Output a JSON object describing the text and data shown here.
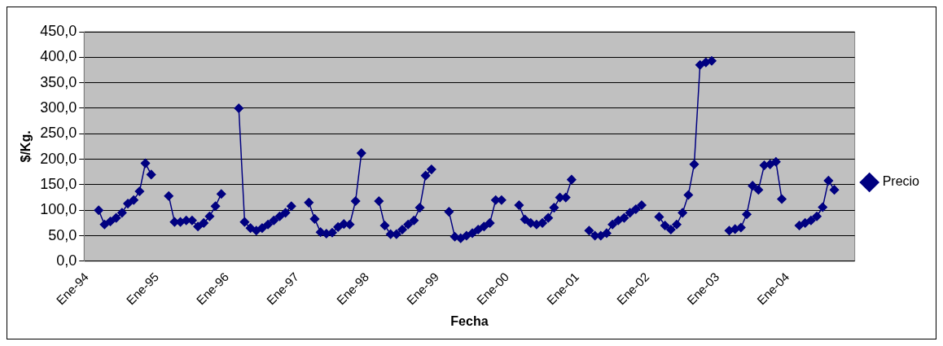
{
  "chart_data": {
    "type": "line",
    "xlabel": "Fecha",
    "ylabel": "$/Kg.",
    "categories": [
      "Ene-94",
      null,
      null,
      null,
      null,
      null,
      null,
      null,
      null,
      null,
      null,
      null,
      "Ene-95",
      null,
      null,
      null,
      null,
      null,
      null,
      null,
      null,
      null,
      null,
      null,
      "Ene-96",
      null,
      null,
      null,
      null,
      null,
      null,
      null,
      null,
      null,
      null,
      null,
      "Ene-97",
      null,
      null,
      null,
      null,
      null,
      null,
      null,
      null,
      null,
      null,
      null,
      "Ene-98",
      null,
      null,
      null,
      null,
      null,
      null,
      null,
      null,
      null,
      null,
      null,
      "Ene-99",
      null,
      null,
      null,
      null,
      null,
      null,
      null,
      null,
      null,
      null,
      null,
      "Ene-00",
      null,
      null,
      null,
      null,
      null,
      null,
      null,
      null,
      null,
      null,
      null,
      "Ene-01",
      null,
      null,
      null,
      null,
      null,
      null,
      null,
      null,
      null,
      null,
      null,
      "Ene-02",
      null,
      null,
      null,
      null,
      null,
      null,
      null,
      null,
      null,
      null,
      null,
      "Ene-03",
      null,
      null,
      null,
      null,
      null,
      null,
      null,
      null,
      null,
      null,
      null,
      "Ene-04",
      null,
      null,
      null,
      null,
      null,
      null,
      null,
      null,
      null,
      null,
      null
    ],
    "series": [
      {
        "name": "Precio",
        "color": "#000080",
        "values": [
          null,
          null,
          100,
          72,
          78,
          85,
          95,
          113,
          120,
          137,
          192,
          170,
          null,
          null,
          128,
          77,
          77,
          80,
          80,
          68,
          75,
          88,
          108,
          132,
          null,
          null,
          300,
          77,
          65,
          60,
          65,
          72,
          80,
          88,
          95,
          108,
          null,
          null,
          115,
          83,
          57,
          54,
          56,
          67,
          73,
          72,
          118,
          212,
          null,
          null,
          118,
          70,
          53,
          53,
          62,
          72,
          80,
          105,
          168,
          180,
          null,
          null,
          97,
          48,
          45,
          50,
          55,
          62,
          68,
          75,
          120,
          120,
          null,
          null,
          110,
          82,
          75,
          72,
          75,
          85,
          105,
          125,
          125,
          160,
          null,
          null,
          60,
          50,
          50,
          55,
          72,
          80,
          85,
          95,
          102,
          110,
          null,
          null,
          87,
          70,
          62,
          72,
          95,
          130,
          190,
          385,
          390,
          393,
          null,
          null,
          60,
          63,
          66,
          92,
          148,
          140,
          188,
          190,
          195,
          122,
          null,
          null,
          70,
          75,
          80,
          88,
          106,
          158,
          140,
          null,
          null,
          null
        ]
      }
    ],
    "ylim": [
      0,
      450
    ],
    "yticks": [
      {
        "value": 0,
        "label": "0,0"
      },
      {
        "value": 50,
        "label": "50,0"
      },
      {
        "value": 100,
        "label": "100,0"
      },
      {
        "value": 150,
        "label": "150,0"
      },
      {
        "value": 200,
        "label": "200,0"
      },
      {
        "value": 250,
        "label": "250,0"
      },
      {
        "value": 300,
        "label": "300,0"
      },
      {
        "value": 350,
        "label": "350,0"
      },
      {
        "value": 400,
        "label": "400,0"
      },
      {
        "value": 450,
        "label": "450,0"
      }
    ],
    "grid": "y",
    "legend": "right",
    "marker": "diamond",
    "line_style": "solid"
  }
}
